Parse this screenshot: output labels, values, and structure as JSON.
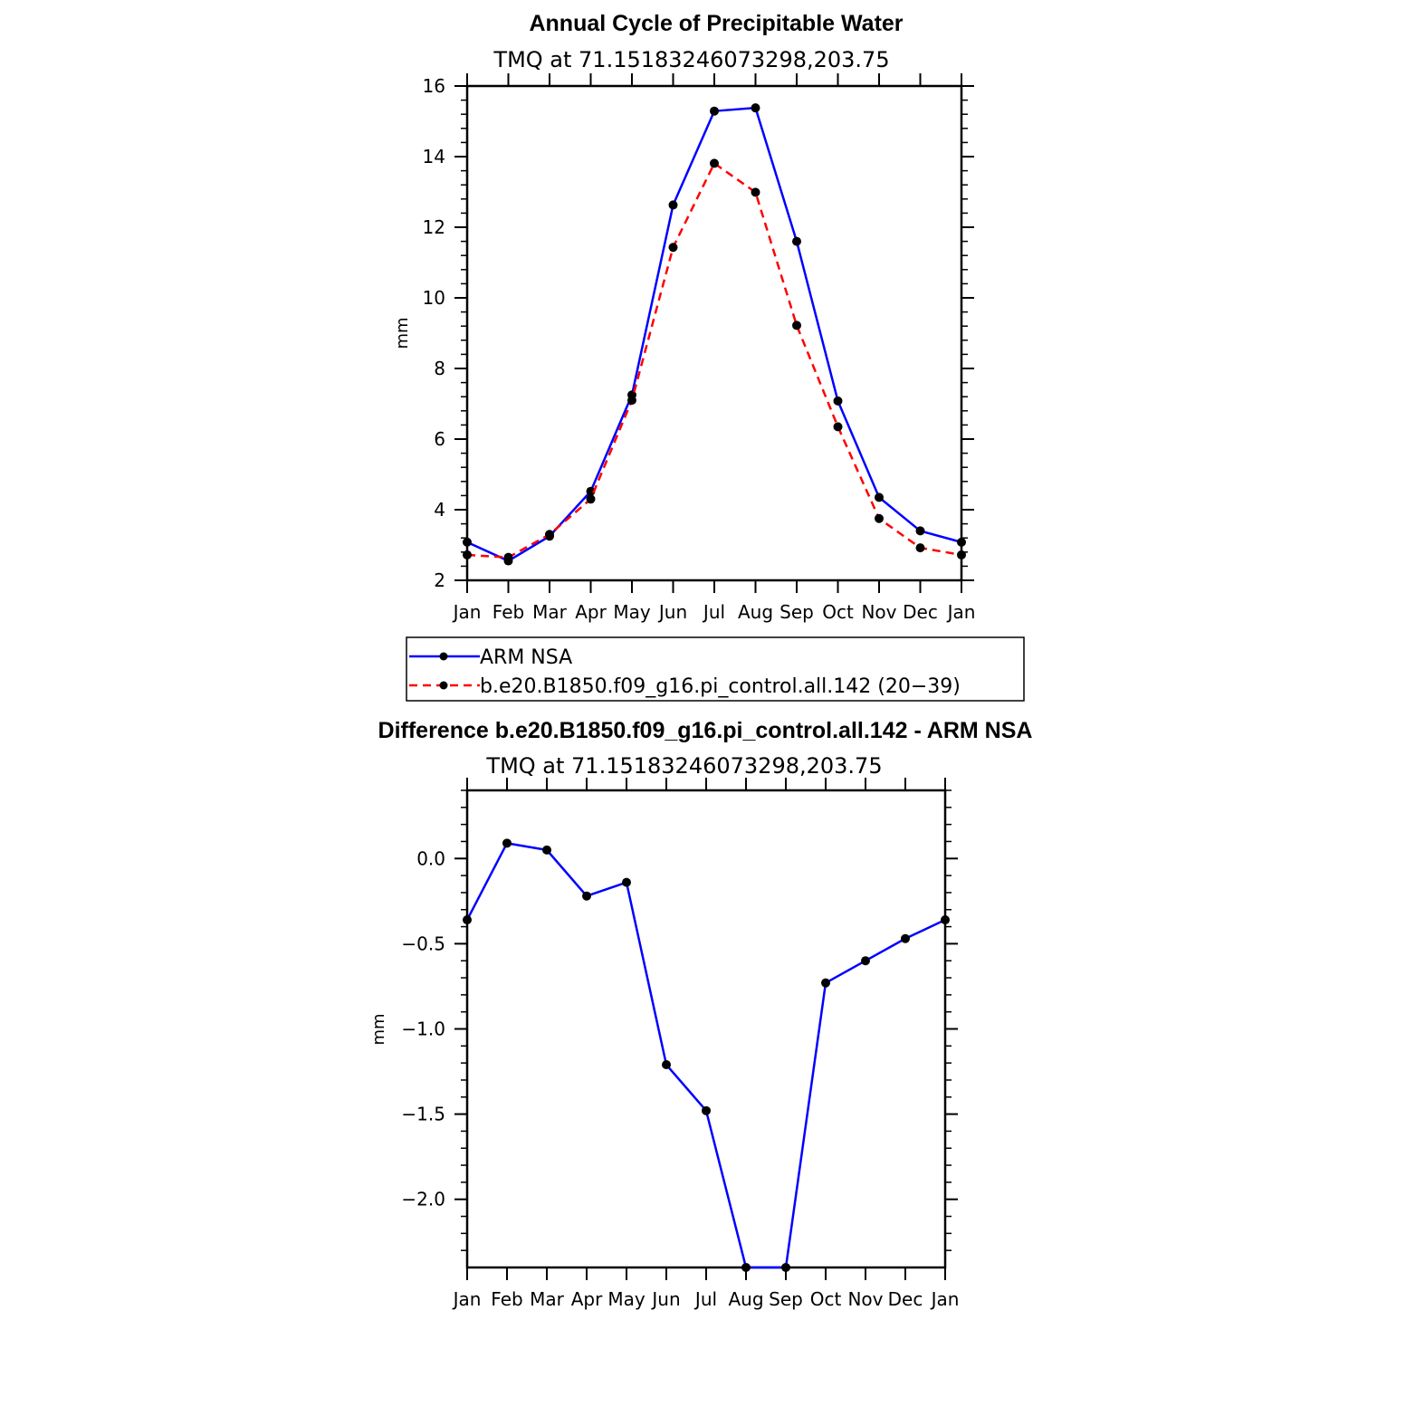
{
  "chart_data": [
    {
      "type": "line",
      "title": "Annual Cycle of Precipitable Water",
      "subtitle": "TMQ at 71.15183246073298,203.75",
      "ylabel": "mm",
      "xlabel": "",
      "categories": [
        "Jan",
        "Feb",
        "Mar",
        "Apr",
        "May",
        "Jun",
        "Jul",
        "Aug",
        "Sep",
        "Oct",
        "Nov",
        "Dec",
        "Jan"
      ],
      "ylim": [
        2,
        16
      ],
      "yticks": [
        "2",
        "4",
        "6",
        "8",
        "10",
        "12",
        "14",
        "16"
      ],
      "yticks_values": [
        2,
        4,
        6,
        8,
        10,
        12,
        14,
        16
      ],
      "series": [
        {
          "name": "ARM NSA",
          "color": "#0000ff",
          "dash": "solid",
          "values": [
            3.08,
            2.55,
            3.25,
            4.52,
            7.25,
            12.63,
            15.29,
            15.38,
            11.6,
            7.08,
            4.35,
            3.4,
            3.08
          ]
        },
        {
          "name": "b.e20.B1850.f09_g16.pi_control.all.142 (20−39)",
          "color": "#ff0000",
          "dash": "dashed",
          "values": [
            2.72,
            2.65,
            3.3,
            4.3,
            7.1,
            11.43,
            13.81,
            12.99,
            9.22,
            6.35,
            3.75,
            2.92,
            2.72
          ]
        }
      ],
      "legend_position": "below"
    },
    {
      "type": "line",
      "title": "Difference b.e20.B1850.f09_g16.pi_control.all.142 - ARM NSA",
      "subtitle": "TMQ at 71.15183246073298,203.75",
      "ylabel": "mm",
      "xlabel": "",
      "categories": [
        "Jan",
        "Feb",
        "Mar",
        "Apr",
        "May",
        "Jun",
        "Jul",
        "Aug",
        "Sep",
        "Oct",
        "Nov",
        "Dec",
        "Jan"
      ],
      "ylim": [
        -2.4,
        0.4
      ],
      "yticks": [
        "0.0",
        "−0.5",
        "−1.0",
        "−1.5",
        "−2.0"
      ],
      "yticks_values": [
        0.0,
        -0.5,
        -1.0,
        -1.5,
        -2.0
      ],
      "series": [
        {
          "color": "#0000ff",
          "dash": "solid",
          "values": [
            -0.36,
            0.09,
            0.05,
            -0.22,
            -0.14,
            -1.21,
            -1.48,
            -2.4,
            -2.4,
            -0.73,
            -0.6,
            -0.47,
            -0.36
          ]
        }
      ]
    }
  ]
}
